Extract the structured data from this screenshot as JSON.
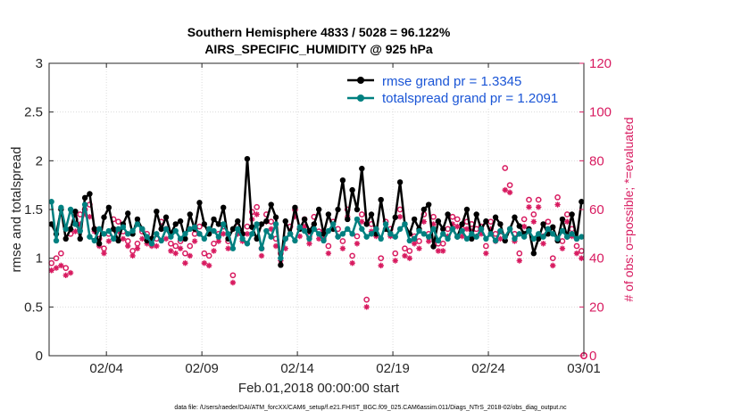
{
  "chart_data": {
    "type": "line",
    "title": "Southern Hemisphere 4833 / 5028 = 96.122%",
    "subtitle": "AIRS_SPECIFIC_HUMIDITY @ 925 hPa",
    "xlabel": "Feb.01,2018 00:00:00 start",
    "ylabel": "rmse and totalspread",
    "ylabel_right": "# of obs: o=possible; *=evaluated",
    "footer": "data file: /Users/raeder/DAI/ATM_forcXX/CAM6_setup/f.e21.FHIST_BGC.f09_025.CAM6assim.011/Diags_NTrS_2018-02/obs_diag_output.nc",
    "xlim": [
      1.0,
      29.0
    ],
    "ylim": [
      0,
      3
    ],
    "ylim_right": [
      0,
      120
    ],
    "x_tick_values": [
      4,
      9,
      14,
      19,
      24,
      29
    ],
    "x_tick_labels": [
      "02/04",
      "02/09",
      "02/14",
      "02/19",
      "02/24",
      "03/01"
    ],
    "y_tick_labels": [
      "0",
      "0.5",
      "1",
      "1.5",
      "2",
      "2.5",
      "3"
    ],
    "y_right_tick_labels": [
      "0",
      "20",
      "40",
      "60",
      "80",
      "100",
      "120"
    ],
    "grid": true,
    "legend": "top-right",
    "legend_entries": [
      "rmse grand pr = 1.3345",
      "totalspread grand pr = 1.2091"
    ],
    "colors": {
      "rmse": "#000000",
      "spread": "#008080",
      "obs": "#d81b60",
      "legend_text": "#1a55d6"
    },
    "x": [
      1.125,
      1.375,
      1.625,
      1.875,
      2.125,
      2.375,
      2.625,
      2.875,
      3.125,
      3.375,
      3.625,
      3.875,
      4.125,
      4.375,
      4.625,
      4.875,
      5.125,
      5.375,
      5.625,
      5.875,
      6.125,
      6.375,
      6.625,
      6.875,
      7.125,
      7.375,
      7.625,
      7.875,
      8.125,
      8.375,
      8.625,
      8.875,
      9.125,
      9.375,
      9.625,
      9.875,
      10.125,
      10.375,
      10.625,
      10.875,
      11.125,
      11.375,
      11.625,
      11.875,
      12.125,
      12.375,
      12.625,
      12.875,
      13.125,
      13.375,
      13.625,
      13.875,
      14.125,
      14.375,
      14.625,
      14.875,
      15.125,
      15.375,
      15.625,
      15.875,
      16.125,
      16.375,
      16.625,
      16.875,
      17.125,
      17.375,
      17.625,
      17.875,
      18.125,
      18.375,
      18.625,
      18.875,
      19.125,
      19.375,
      19.625,
      19.875,
      20.125,
      20.375,
      20.625,
      20.875,
      21.125,
      21.375,
      21.625,
      21.875,
      22.125,
      22.375,
      22.625,
      22.875,
      23.125,
      23.375,
      23.625,
      23.875,
      24.125,
      24.375,
      24.625,
      24.875,
      25.125,
      25.375,
      25.625,
      25.875,
      26.125,
      26.375,
      26.625,
      26.875,
      27.125,
      27.375,
      27.625,
      27.875,
      28.125,
      28.375,
      28.625,
      28.875
    ],
    "series": [
      {
        "name": "rmse",
        "values": [
          1.35,
          1.25,
          1.5,
          1.2,
          1.3,
          1.48,
          1.2,
          1.62,
          1.66,
          1.3,
          1.15,
          1.42,
          1.52,
          1.3,
          1.18,
          1.35,
          1.46,
          1.25,
          1.4,
          1.3,
          1.18,
          1.2,
          1.48,
          1.3,
          1.42,
          1.25,
          1.35,
          1.38,
          1.2,
          1.45,
          1.3,
          1.57,
          1.35,
          1.25,
          1.4,
          1.35,
          1.52,
          1.2,
          1.3,
          1.38,
          1.25,
          2.02,
          1.32,
          1.2,
          1.35,
          1.38,
          1.55,
          1.42,
          0.93,
          1.38,
          1.25,
          1.52,
          1.3,
          1.4,
          1.28,
          1.35,
          1.5,
          1.25,
          1.45,
          1.3,
          1.5,
          1.8,
          1.4,
          1.7,
          1.5,
          1.92,
          1.35,
          1.45,
          1.25,
          1.6,
          1.3,
          1.25,
          1.42,
          1.78,
          1.35,
          1.25,
          1.4,
          1.3,
          1.5,
          1.55,
          1.12,
          1.38,
          1.3,
          1.45,
          1.3,
          1.22,
          1.35,
          1.5,
          1.2,
          1.45,
          1.3,
          1.38,
          1.25,
          1.42,
          1.35,
          1.18,
          1.3,
          1.42,
          1.33,
          1.25,
          1.3,
          1.05,
          1.2,
          1.35,
          1.25,
          1.32,
          1.18,
          1.4,
          1.22,
          1.45,
          1.2,
          1.58
        ]
      },
      {
        "name": "totalspread",
        "values": [
          1.58,
          1.18,
          1.52,
          1.3,
          1.5,
          1.35,
          1.28,
          1.55,
          1.22,
          1.18,
          1.3,
          1.25,
          1.28,
          1.2,
          1.3,
          1.32,
          1.25,
          1.28,
          1.35,
          1.3,
          1.22,
          1.15,
          1.25,
          1.18,
          1.3,
          1.22,
          1.28,
          1.2,
          1.25,
          1.3,
          1.32,
          1.25,
          1.2,
          1.3,
          1.28,
          1.22,
          1.35,
          1.25,
          1.1,
          1.3,
          1.2,
          1.15,
          1.25,
          1.35,
          1.1,
          1.28,
          1.22,
          1.35,
          1.0,
          1.2,
          1.25,
          1.18,
          1.32,
          1.28,
          1.2,
          1.3,
          1.25,
          1.18,
          1.28,
          1.35,
          1.22,
          1.25,
          1.3,
          1.25,
          1.4,
          1.3,
          1.22,
          1.25,
          1.3,
          1.2,
          1.35,
          1.25,
          1.22,
          1.3,
          1.35,
          1.18,
          1.2,
          1.28,
          1.25,
          1.22,
          1.3,
          1.18,
          1.25,
          1.2,
          1.3,
          1.22,
          1.28,
          1.2,
          1.25,
          1.22,
          1.3,
          1.2,
          1.25,
          1.18,
          1.28,
          1.22,
          1.3,
          1.2,
          1.25,
          1.22,
          1.28,
          1.2,
          1.25,
          1.22,
          1.3,
          1.25,
          1.2,
          1.28,
          1.22,
          1.25,
          1.2,
          1.22
        ]
      },
      {
        "name": "possible",
        "axis": "right",
        "values": [
          38,
          40,
          42,
          36,
          50,
          56,
          58,
          60,
          62,
          52,
          48,
          44,
          50,
          56,
          55,
          51,
          47,
          43,
          46,
          51,
          50,
          48,
          48,
          55,
          52,
          46,
          45,
          47,
          42,
          45,
          50,
          53,
          42,
          41,
          46,
          50,
          53,
          47,
          33,
          53,
          50,
          53,
          59,
          61,
          44,
          58,
          55,
          48,
          42,
          48,
          53,
          60,
          52,
          56,
          49,
          57,
          51,
          51,
          45,
          55,
          52,
          47,
          60,
          41,
          49,
          58,
          23,
          54,
          52,
          40,
          55,
          52,
          42,
          60,
          44,
          43,
          49,
          47,
          58,
          50,
          57,
          46,
          46,
          52,
          57,
          56,
          52,
          55,
          54,
          52,
          53,
          45,
          55,
          50,
          51,
          77,
          70,
          50,
          42,
          56,
          64,
          58,
          64,
          49,
          55,
          40,
          65,
          47,
          58,
          52,
          45,
          43
        ]
      },
      {
        "name": "evaluated",
        "axis": "right",
        "values": [
          35,
          36,
          37,
          33,
          34,
          51,
          54,
          58,
          57,
          51,
          45,
          42,
          47,
          52,
          51,
          48,
          45,
          41,
          44,
          48,
          46,
          45,
          45,
          52,
          48,
          43,
          42,
          44,
          38,
          41,
          47,
          50,
          38,
          37,
          43,
          47,
          50,
          44,
          30,
          50,
          47,
          50,
          56,
          58,
          41,
          55,
          52,
          45,
          39,
          44,
          50,
          57,
          49,
          53,
          46,
          54,
          48,
          48,
          42,
          52,
          49,
          44,
          57,
          38,
          46,
          55,
          20,
          51,
          49,
          37,
          52,
          49,
          39,
          57,
          41,
          40,
          46,
          44,
          55,
          47,
          54,
          43,
          43,
          49,
          54,
          53,
          49,
          52,
          51,
          49,
          50,
          42,
          52,
          47,
          48,
          68,
          67,
          47,
          39,
          53,
          61,
          55,
          61,
          46,
          52,
          37,
          62,
          44,
          55,
          49,
          42,
          40
        ]
      }
    ]
  }
}
